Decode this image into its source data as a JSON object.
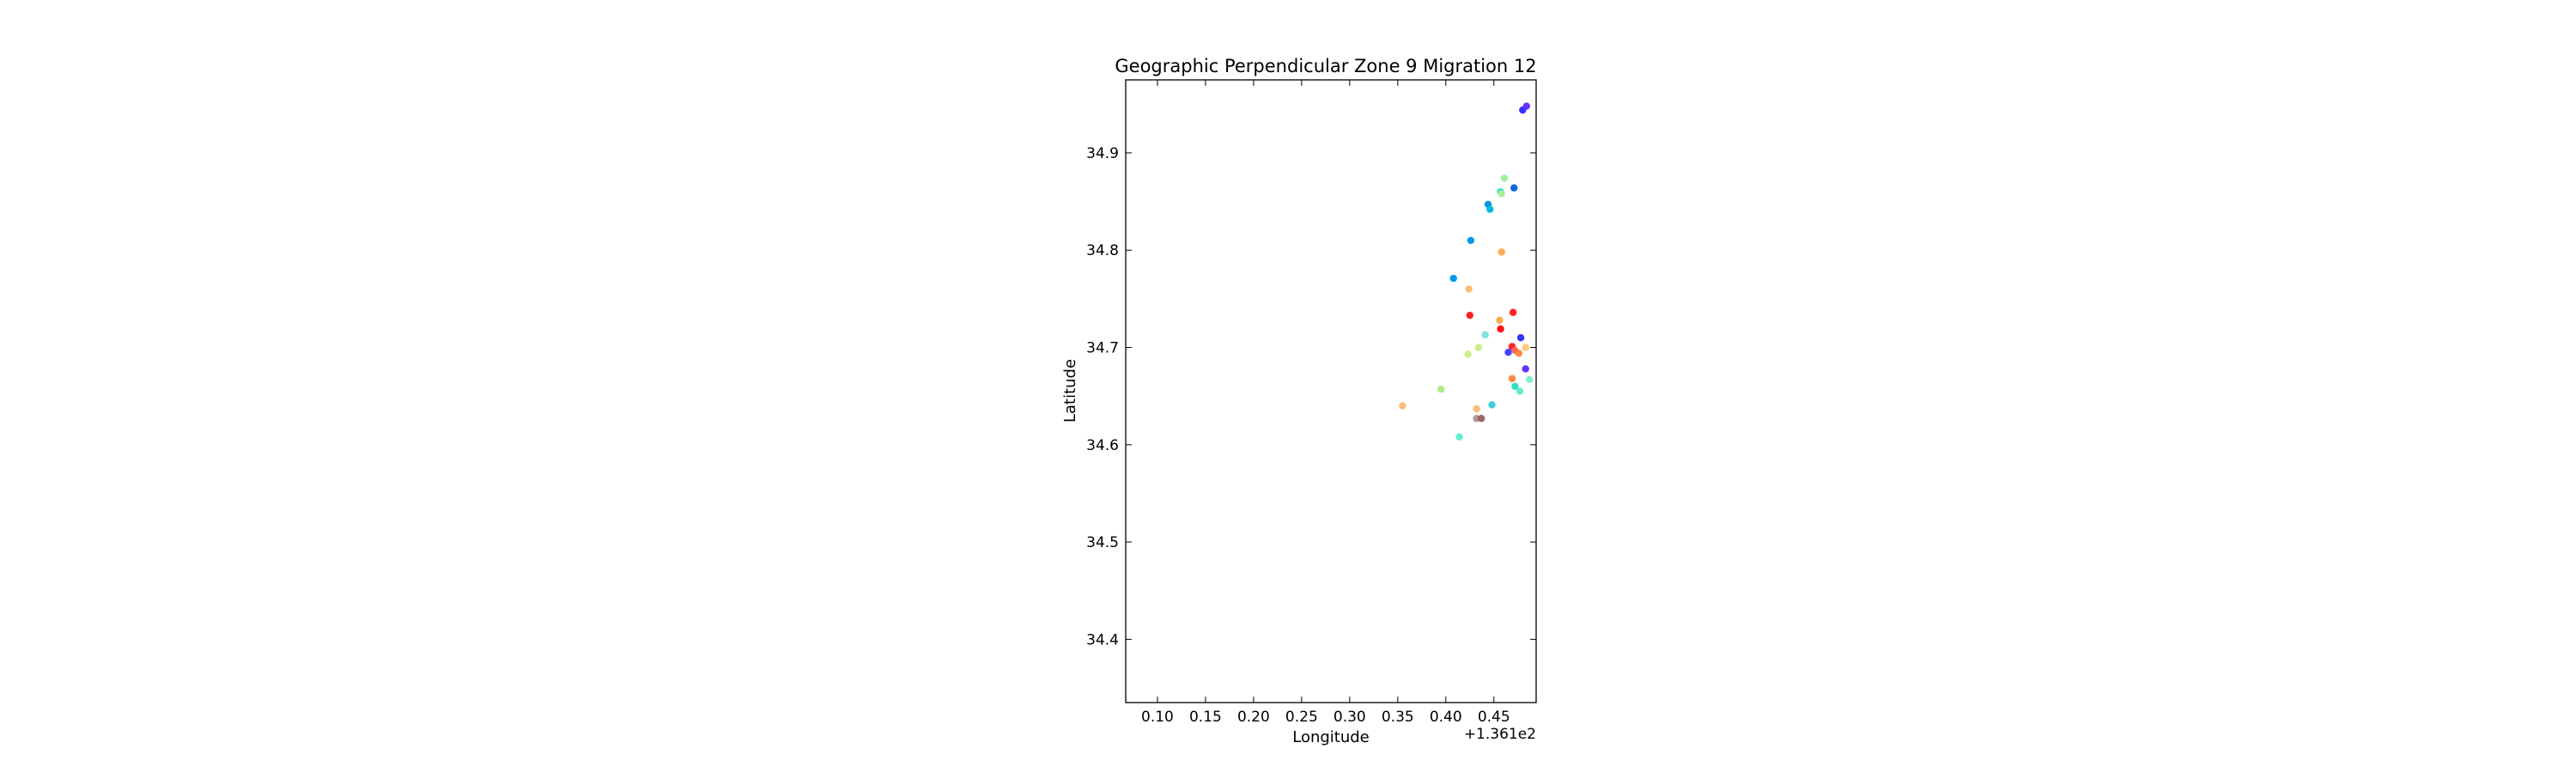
{
  "chart_data": {
    "type": "scatter",
    "title": "Geographic Perpendicular Zone 9 Migration 12",
    "xlabel": "Longitude",
    "ylabel": "Latitude",
    "x_offset_label": "+1.361e2",
    "x_offset": 136.1,
    "xlim": [
      0.067,
      0.494
    ],
    "ylim": [
      34.335,
      34.975
    ],
    "x_ticks": [
      0.1,
      0.15,
      0.2,
      0.25,
      0.3,
      0.35,
      0.4,
      0.45
    ],
    "x_tick_labels": [
      "0.10",
      "0.15",
      "0.20",
      "0.25",
      "0.30",
      "0.35",
      "0.40",
      "0.45"
    ],
    "y_ticks": [
      34.4,
      34.5,
      34.6,
      34.7,
      34.8,
      34.9
    ],
    "y_tick_labels": [
      "34.4",
      "34.5",
      "34.6",
      "34.7",
      "34.8",
      "34.9"
    ],
    "grid": false,
    "legend": "none",
    "points": [
      {
        "x": 0.48,
        "y": 34.944,
        "color": "#3333ff"
      },
      {
        "x": 0.484,
        "y": 34.948,
        "color": "#6633ff"
      },
      {
        "x": 0.461,
        "y": 34.874,
        "color": "#99f099"
      },
      {
        "x": 0.457,
        "y": 34.86,
        "color": "#33ddcc"
      },
      {
        "x": 0.458,
        "y": 34.858,
        "color": "#aaee99"
      },
      {
        "x": 0.471,
        "y": 34.864,
        "color": "#1166dd"
      },
      {
        "x": 0.444,
        "y": 34.847,
        "color": "#0099dd"
      },
      {
        "x": 0.446,
        "y": 34.842,
        "color": "#00bbdd"
      },
      {
        "x": 0.426,
        "y": 34.81,
        "color": "#0099ee"
      },
      {
        "x": 0.458,
        "y": 34.798,
        "color": "#ffaa55"
      },
      {
        "x": 0.408,
        "y": 34.771,
        "color": "#0099ee"
      },
      {
        "x": 0.424,
        "y": 34.76,
        "color": "#ffbb77"
      },
      {
        "x": 0.425,
        "y": 34.733,
        "color": "#ff2222"
      },
      {
        "x": 0.47,
        "y": 34.736,
        "color": "#ff2222"
      },
      {
        "x": 0.456,
        "y": 34.728,
        "color": "#ffaa55"
      },
      {
        "x": 0.457,
        "y": 34.719,
        "color": "#ff1111"
      },
      {
        "x": 0.441,
        "y": 34.713,
        "color": "#88dddd"
      },
      {
        "x": 0.478,
        "y": 34.71,
        "color": "#3333ff"
      },
      {
        "x": 0.434,
        "y": 34.7,
        "color": "#ccee88"
      },
      {
        "x": 0.469,
        "y": 34.701,
        "color": "#ff2222"
      },
      {
        "x": 0.472,
        "y": 34.697,
        "color": "#ff6655"
      },
      {
        "x": 0.465,
        "y": 34.695,
        "color": "#4444ff"
      },
      {
        "x": 0.476,
        "y": 34.694,
        "color": "#ff8844"
      },
      {
        "x": 0.483,
        "y": 34.7,
        "color": "#ffcc77"
      },
      {
        "x": 0.423,
        "y": 34.693,
        "color": "#ccee88"
      },
      {
        "x": 0.483,
        "y": 34.678,
        "color": "#6633ff"
      },
      {
        "x": 0.469,
        "y": 34.668,
        "color": "#ff8844"
      },
      {
        "x": 0.472,
        "y": 34.66,
        "color": "#33ddcc"
      },
      {
        "x": 0.477,
        "y": 34.655,
        "color": "#66eecc"
      },
      {
        "x": 0.487,
        "y": 34.667,
        "color": "#88eecc"
      },
      {
        "x": 0.395,
        "y": 34.657,
        "color": "#aaee88"
      },
      {
        "x": 0.355,
        "y": 34.64,
        "color": "#ffbb77"
      },
      {
        "x": 0.448,
        "y": 34.641,
        "color": "#44ccdd"
      },
      {
        "x": 0.432,
        "y": 34.637,
        "color": "#ffbb77"
      },
      {
        "x": 0.432,
        "y": 34.627,
        "color": "#aa9999"
      },
      {
        "x": 0.437,
        "y": 34.627,
        "color": "#996666"
      },
      {
        "x": 0.414,
        "y": 34.608,
        "color": "#66eecc"
      }
    ]
  }
}
